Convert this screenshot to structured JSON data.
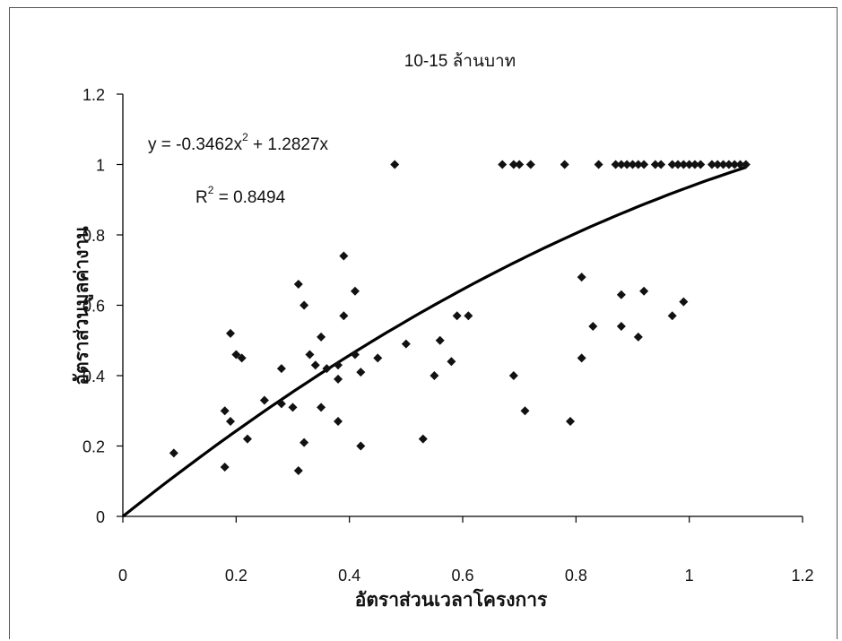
{
  "chart_data": {
    "type": "scatter",
    "title": "10-15 ล้านบาท",
    "xlabel": "อัตราส่วนเวลาโครงการ",
    "ylabel": "อัตราส่วนมูลค่างาน",
    "xlim": [
      0,
      1.2
    ],
    "ylim": [
      0,
      1.2
    ],
    "x_ticks": [
      "0",
      "0.2",
      "0.4",
      "0.6",
      "0.8",
      "1",
      "1.2"
    ],
    "y_ticks": [
      "0",
      "0.2",
      "0.4",
      "0.6",
      "0.8",
      "1",
      "1.2"
    ],
    "grid": false,
    "legend": "none",
    "point_color": "#111111",
    "trendline": {
      "type": "polynomial",
      "a": -0.3462,
      "b": 1.2827,
      "x_range": [
        0,
        1.1
      ],
      "equation_main": "y = -0.3462x",
      "equation_exp": "2",
      "equation_tail": " + 1.2827x",
      "r2_main": "R",
      "r2_exp": "2",
      "r2_tail": " = 0.8494"
    },
    "points": [
      [
        0.09,
        0.18
      ],
      [
        0.18,
        0.14
      ],
      [
        0.18,
        0.3
      ],
      [
        0.19,
        0.52
      ],
      [
        0.19,
        0.27
      ],
      [
        0.2,
        0.46
      ],
      [
        0.21,
        0.45
      ],
      [
        0.22,
        0.22
      ],
      [
        0.25,
        0.33
      ],
      [
        0.28,
        0.42
      ],
      [
        0.28,
        0.32
      ],
      [
        0.3,
        0.31
      ],
      [
        0.31,
        0.66
      ],
      [
        0.31,
        0.13
      ],
      [
        0.32,
        0.6
      ],
      [
        0.32,
        0.21
      ],
      [
        0.33,
        0.46
      ],
      [
        0.34,
        0.43
      ],
      [
        0.35,
        0.51
      ],
      [
        0.35,
        0.31
      ],
      [
        0.36,
        0.42
      ],
      [
        0.38,
        0.43
      ],
      [
        0.38,
        0.39
      ],
      [
        0.38,
        0.27
      ],
      [
        0.39,
        0.74
      ],
      [
        0.39,
        0.57
      ],
      [
        0.41,
        0.64
      ],
      [
        0.41,
        0.46
      ],
      [
        0.42,
        0.41
      ],
      [
        0.42,
        0.2
      ],
      [
        0.45,
        0.45
      ],
      [
        0.48,
        1.0
      ],
      [
        0.5,
        0.49
      ],
      [
        0.53,
        0.22
      ],
      [
        0.55,
        0.4
      ],
      [
        0.56,
        0.5
      ],
      [
        0.58,
        0.44
      ],
      [
        0.59,
        0.57
      ],
      [
        0.61,
        0.57
      ],
      [
        0.67,
        1.0
      ],
      [
        0.69,
        1.0
      ],
      [
        0.69,
        0.4
      ],
      [
        0.7,
        1.0
      ],
      [
        0.71,
        0.3
      ],
      [
        0.72,
        1.0
      ],
      [
        0.78,
        1.0
      ],
      [
        0.79,
        0.27
      ],
      [
        0.81,
        0.68
      ],
      [
        0.81,
        0.45
      ],
      [
        0.83,
        0.54
      ],
      [
        0.84,
        1.0
      ],
      [
        0.87,
        1.0
      ],
      [
        0.88,
        1.0
      ],
      [
        0.88,
        0.63
      ],
      [
        0.88,
        0.54
      ],
      [
        0.89,
        1.0
      ],
      [
        0.9,
        1.0
      ],
      [
        0.91,
        1.0
      ],
      [
        0.91,
        0.51
      ],
      [
        0.92,
        1.0
      ],
      [
        0.92,
        0.64
      ],
      [
        0.94,
        1.0
      ],
      [
        0.95,
        1.0
      ],
      [
        0.97,
        1.0
      ],
      [
        0.97,
        0.57
      ],
      [
        0.98,
        1.0
      ],
      [
        0.99,
        1.0
      ],
      [
        0.99,
        0.61
      ],
      [
        1.0,
        1.0
      ],
      [
        1.01,
        1.0
      ],
      [
        1.02,
        1.0
      ],
      [
        1.04,
        1.0
      ],
      [
        1.05,
        1.0
      ],
      [
        1.06,
        1.0
      ],
      [
        1.07,
        1.0
      ],
      [
        1.08,
        1.0
      ],
      [
        1.09,
        1.0
      ],
      [
        1.1,
        1.0
      ]
    ]
  }
}
